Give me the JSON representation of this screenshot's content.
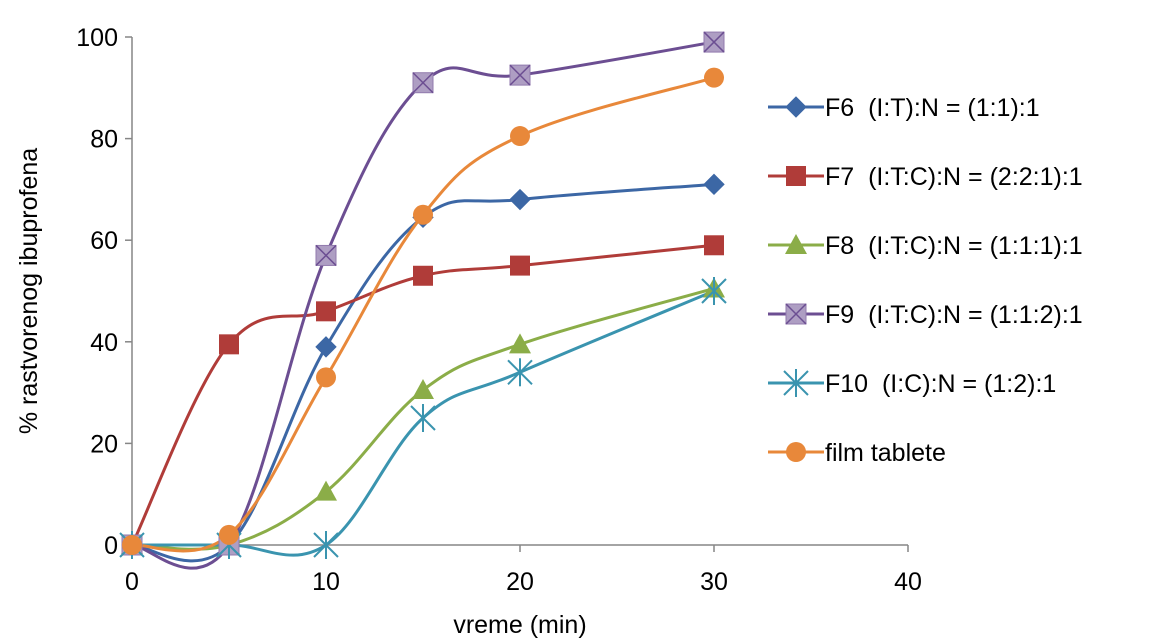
{
  "chart_data": {
    "type": "line",
    "title": "",
    "xlabel": "vreme (min)",
    "ylabel": "% rastvorenog ibuprofena",
    "xlim": [
      0,
      40
    ],
    "ylim": [
      0,
      100
    ],
    "xticks": [
      0,
      10,
      20,
      30,
      40
    ],
    "yticks": [
      0,
      20,
      40,
      60,
      80,
      100
    ],
    "grid": false,
    "legend_position": "right",
    "smooth": true,
    "series": [
      {
        "name": "F6  (I:T):N = (1:1):1",
        "color": "#3C67A5",
        "marker": "diamond",
        "x": [
          0,
          5,
          10,
          15,
          20,
          30
        ],
        "y": [
          0,
          0,
          39,
          64.5,
          68,
          71
        ]
      },
      {
        "name": "F7  (I:T:C):N = (2:2:1):1",
        "color": "#B03C39",
        "marker": "square",
        "x": [
          0,
          5,
          10,
          15,
          20,
          30
        ],
        "y": [
          0,
          39.5,
          46,
          53,
          55,
          59
        ]
      },
      {
        "name": "F8  (I:T:C):N = (1:1:1):1",
        "color": "#8BAD48",
        "marker": "triangle",
        "x": [
          0,
          5,
          10,
          15,
          20,
          30
        ],
        "y": [
          0,
          0,
          10.5,
          30.5,
          39.5,
          50.5
        ]
      },
      {
        "name": "F9  (I:T:C):N = (1:1:2):1",
        "color": "#6C4E92",
        "marker": "xsquare",
        "x": [
          0,
          5,
          10,
          15,
          20,
          30
        ],
        "y": [
          0,
          0,
          57,
          91,
          92.5,
          99
        ]
      },
      {
        "name": "F10  (I:C):N = (1:2):1",
        "color": "#3A94AF",
        "marker": "star",
        "x": [
          0,
          5,
          10,
          15,
          20,
          30
        ],
        "y": [
          0,
          0,
          0,
          25,
          34,
          50
        ]
      },
      {
        "name": "film tablete",
        "color": "#E8883A",
        "marker": "circle",
        "x": [
          0,
          5,
          10,
          15,
          20,
          30
        ],
        "y": [
          0,
          2,
          33,
          65,
          80.5,
          92
        ]
      }
    ]
  }
}
